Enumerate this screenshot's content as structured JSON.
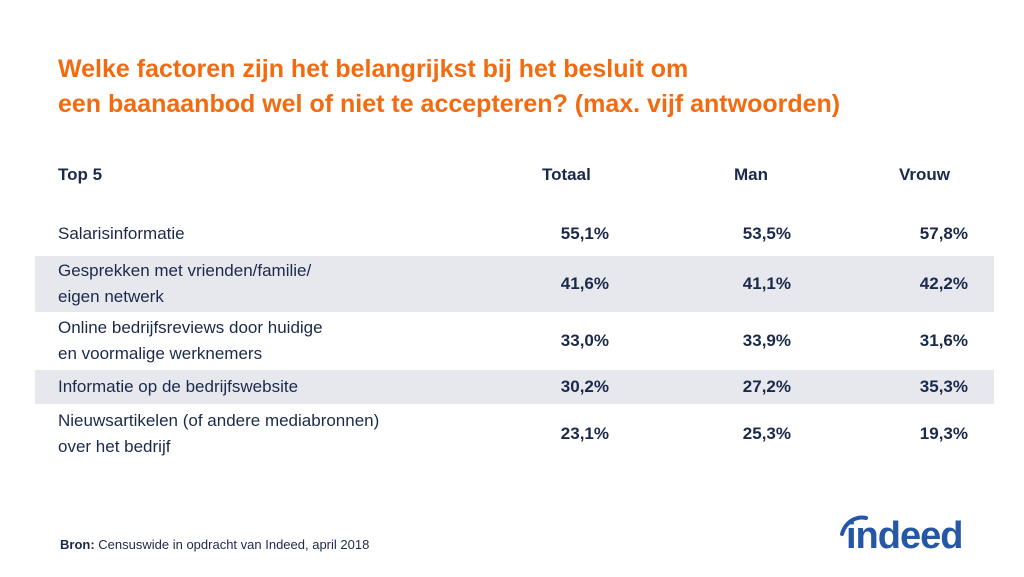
{
  "title": {
    "line1": "Welke factoren zijn het belangrijkst bij het besluit om",
    "line2": "een baanaanbod wel of niet te accepteren? (max. vijf antwoorden)"
  },
  "chart_data": {
    "type": "table",
    "columns": [
      "Top 5",
      "Totaal",
      "Man",
      "Vrouw"
    ],
    "rows": [
      {
        "label": [
          "Salarisinformatie"
        ],
        "values": [
          "55,1%",
          "53,5%",
          "57,8%"
        ]
      },
      {
        "label": [
          "Gesprekken met vrienden/familie/",
          "eigen netwerk"
        ],
        "values": [
          "41,6%",
          "41,1%",
          "42,2%"
        ]
      },
      {
        "label": [
          "Online bedrijfsreviews door huidige",
          "en voormalige werknemers"
        ],
        "values": [
          "33,0%",
          "33,9%",
          "31,6%"
        ]
      },
      {
        "label": [
          "Informatie op de bedrijfswebsite"
        ],
        "values": [
          "30,2%",
          "27,2%",
          "35,3%"
        ]
      },
      {
        "label": [
          "Nieuwsartikelen (of andere mediabronnen)",
          "over het bedrijf"
        ],
        "values": [
          "23,1%",
          "25,3%",
          "19,3%"
        ]
      }
    ]
  },
  "source": {
    "label": "Bron:",
    "text": "Censuswide in opdracht van Indeed, april 2018"
  },
  "logo": {
    "text": "indeed",
    "color": "#2557a7"
  },
  "colors": {
    "title": "#f26b10",
    "text": "#1b2a4a",
    "row_shade": "#e6e8ee"
  }
}
